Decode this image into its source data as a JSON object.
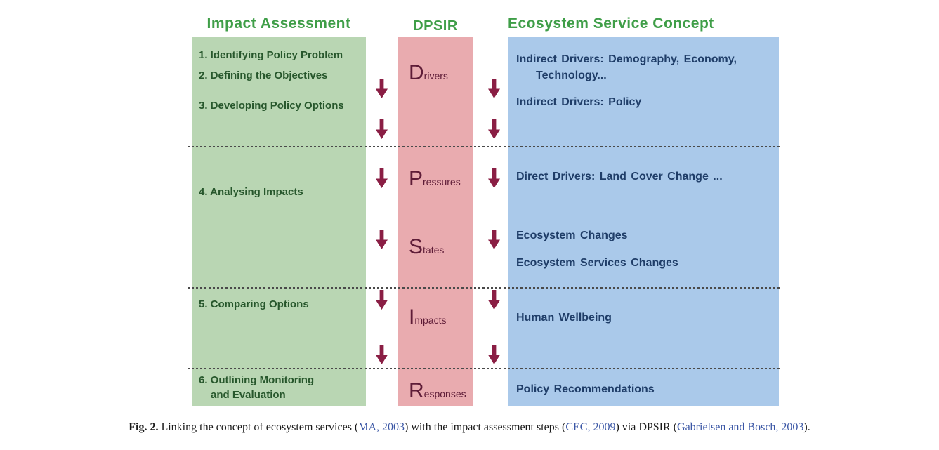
{
  "figure": {
    "impact": {
      "header": "Impact Assessment",
      "steps": [
        "1. Identifying Policy Problem",
        "2. Defining the Objectives",
        "3. Developing Policy Options",
        "4. Analysing Impacts",
        "5. Comparing Options",
        [
          "6. Outlining Monitoring",
          "and Evaluation"
        ]
      ]
    },
    "dpsir": {
      "header": "DPSIR",
      "items": [
        {
          "initial": "D",
          "rest": "rivers"
        },
        {
          "initial": "P",
          "rest": "ressures"
        },
        {
          "initial": "S",
          "rest": "tates"
        },
        {
          "initial": "I",
          "rest": "mpacts"
        },
        {
          "initial": "R",
          "rest": "esponses"
        }
      ]
    },
    "ecosystem": {
      "header": "Ecosystem Service Concept",
      "items": [
        [
          "Indirect Drivers: Demography, Economy,",
          "Technology..."
        ],
        "Indirect Drivers: Policy",
        "Direct Drivers: Land Cover Change ...",
        "Ecosystem Changes",
        "Ecosystem Services Changes",
        "Human Wellbeing",
        "Policy Recommendations"
      ]
    }
  },
  "caption": {
    "label": "Fig. 2.",
    "text1": " Linking the concept of ecosystem services (",
    "ref1": "MA, 2003",
    "text2": ") with the impact assessment steps (",
    "ref2": "CEC, 2009",
    "text3": ") via DPSIR (",
    "ref3": "Gabrielsen and Bosch, 2003",
    "text4": ")."
  },
  "colors": {
    "header_green": "#3f9e48",
    "impact_panel_bg": "#b9d6b3",
    "impact_text": "#27572c",
    "dpsir_panel_bg": "#e9abaf",
    "dpsir_text": "#5e1c37",
    "arrow": "#8a1e44",
    "ecosystem_panel_bg": "#aac9ea",
    "ecosystem_text": "#1f3d68",
    "citation_link": "#3a56a5"
  }
}
